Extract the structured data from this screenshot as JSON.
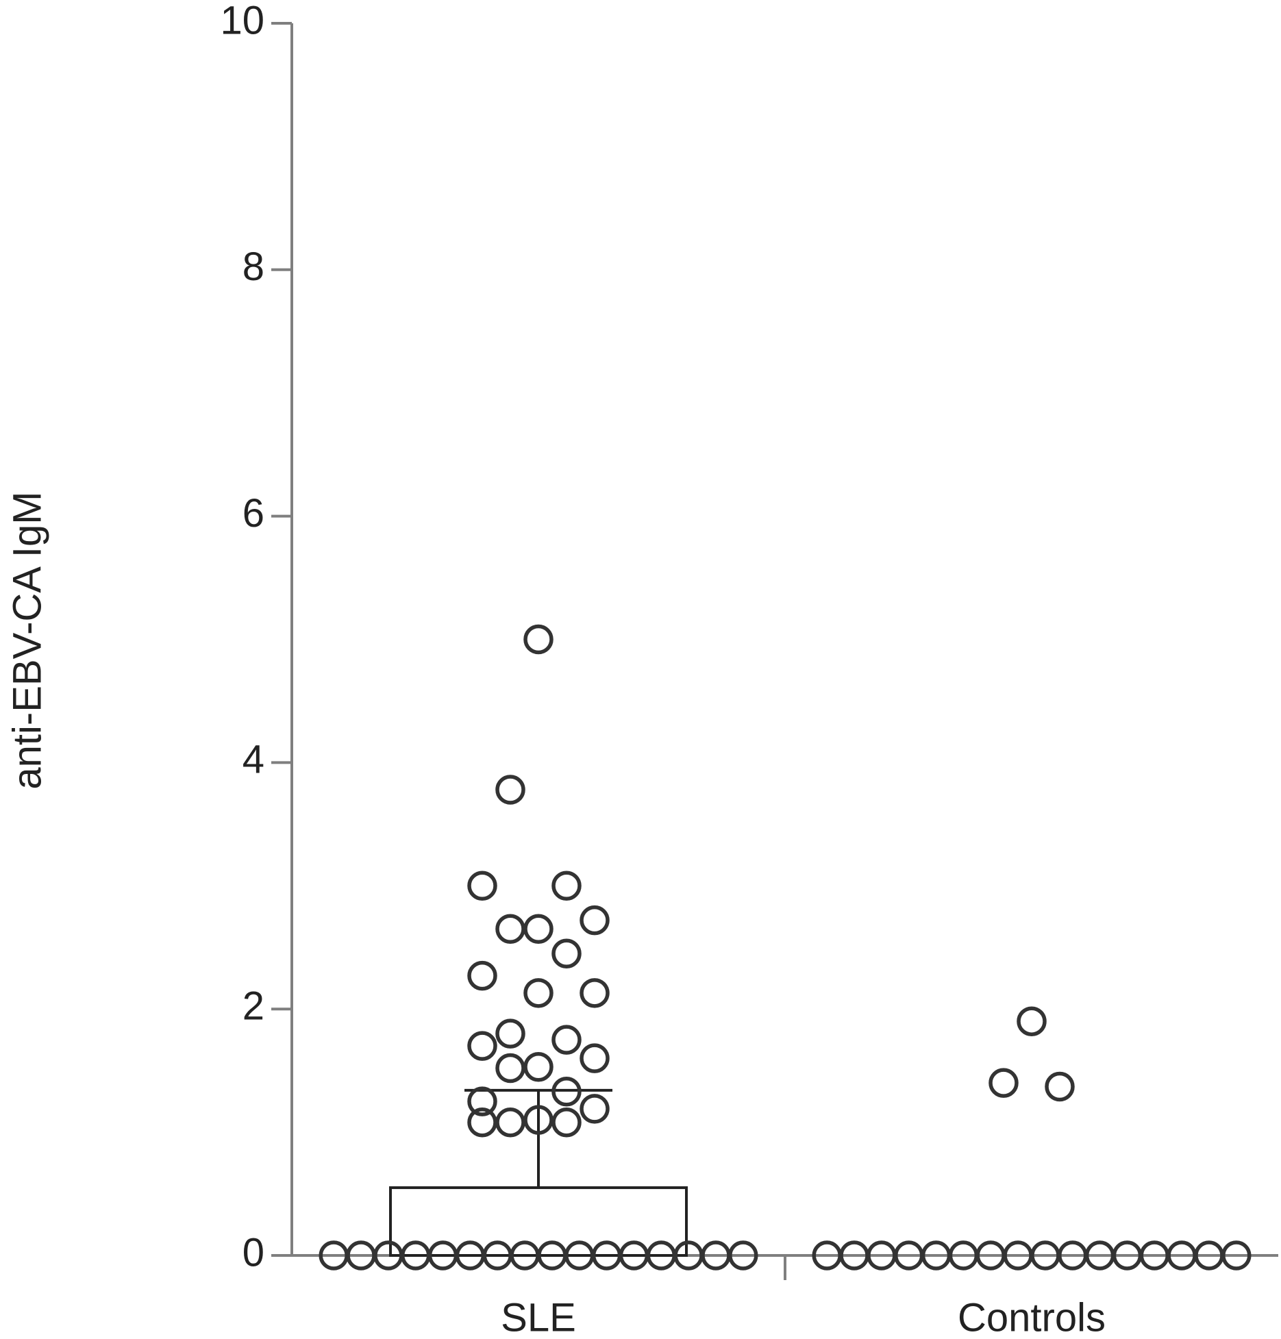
{
  "chart_data": {
    "type": "bar",
    "y_label": "anti-EBV-CA IgM",
    "categories": [
      "SLE",
      "Controls"
    ],
    "values": [
      0.55,
      0
    ],
    "errors": [
      0.79,
      null
    ],
    "points": [
      [
        5.0,
        3.78,
        3.0,
        3.0,
        2.72,
        2.65,
        2.65,
        2.45,
        2.27,
        2.13,
        2.13,
        1.8,
        1.75,
        1.7,
        1.6,
        1.53,
        1.52,
        1.33,
        1.25,
        1.19,
        1.1,
        1.08,
        1.08,
        1.08,
        0,
        0,
        0,
        0,
        0,
        0,
        0,
        0,
        0,
        0,
        0,
        0,
        0,
        0,
        0,
        0
      ],
      [
        1.9,
        1.4,
        1.37,
        0,
        0,
        0,
        0,
        0,
        0,
        0,
        0,
        0,
        0,
        0,
        0,
        0,
        0,
        0,
        0
      ]
    ],
    "color": "#333333",
    "ylim": [
      0,
      10
    ],
    "yticks": [
      0,
      2,
      4,
      6,
      8,
      10
    ]
  }
}
